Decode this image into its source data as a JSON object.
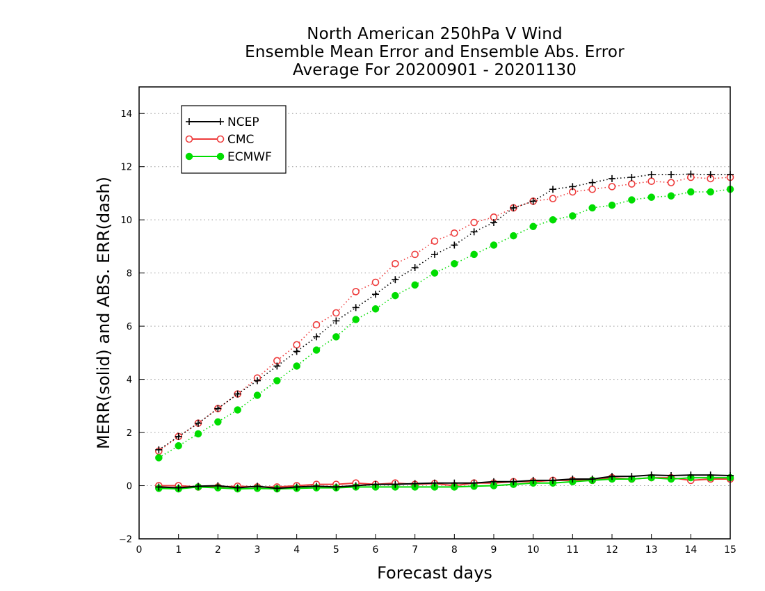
{
  "chart_data": {
    "type": "line",
    "title": [
      "North American 250hPa V Wind",
      "Ensemble Mean Error and Ensemble Abs. Error",
      "Average For 20200901 - 20201130"
    ],
    "xlabel": "Forecast days",
    "ylabel": "MERR(solid) and ABS. ERR(dash)",
    "xlim": [
      0,
      15
    ],
    "ylim": [
      -2,
      15
    ],
    "xticks": [
      0,
      1,
      2,
      3,
      4,
      5,
      6,
      7,
      8,
      9,
      10,
      11,
      12,
      13,
      14,
      15
    ],
    "yticks": [
      -2,
      0,
      2,
      4,
      6,
      8,
      10,
      12,
      14
    ],
    "grid": "horizontal dotted",
    "legend_position": "top-left",
    "x": [
      0.5,
      1,
      1.5,
      2,
      2.5,
      3,
      3.5,
      4,
      4.5,
      5,
      5.5,
      6,
      6.5,
      7,
      7.5,
      8,
      8.5,
      9,
      9.5,
      10,
      10.5,
      11,
      11.5,
      12,
      12.5,
      13,
      13.5,
      14,
      14.5,
      15
    ],
    "series": [
      {
        "name": "NCEP",
        "color": "#000000",
        "marker": "plus",
        "abs_error": [
          1.35,
          1.85,
          2.35,
          2.9,
          3.45,
          3.95,
          4.5,
          5.05,
          5.6,
          6.2,
          6.7,
          7.2,
          7.75,
          8.2,
          8.7,
          9.05,
          9.55,
          9.9,
          10.45,
          10.7,
          11.15,
          11.25,
          11.4,
          11.55,
          11.6,
          11.7,
          11.7,
          11.72,
          11.7,
          11.7
        ],
        "mean_error": [
          -0.05,
          -0.08,
          -0.02,
          0.0,
          -0.08,
          -0.02,
          -0.1,
          -0.05,
          -0.02,
          -0.05,
          0.0,
          0.05,
          0.05,
          0.08,
          0.1,
          0.1,
          0.1,
          0.15,
          0.15,
          0.2,
          0.2,
          0.25,
          0.25,
          0.35,
          0.35,
          0.4,
          0.38,
          0.4,
          0.4,
          0.38
        ]
      },
      {
        "name": "CMC",
        "color": "#ee3b3b",
        "marker": "open-circle",
        "abs_error": [
          1.3,
          1.85,
          2.35,
          2.9,
          3.45,
          4.05,
          4.7,
          5.3,
          6.05,
          6.5,
          7.3,
          7.65,
          8.35,
          8.7,
          9.2,
          9.5,
          9.9,
          10.1,
          10.45,
          10.7,
          10.8,
          11.05,
          11.15,
          11.25,
          11.35,
          11.45,
          11.4,
          11.6,
          11.55,
          11.6
        ],
        "mean_error": [
          0.0,
          0.0,
          -0.05,
          -0.05,
          -0.02,
          -0.05,
          -0.05,
          0.0,
          0.05,
          0.05,
          0.1,
          0.05,
          0.1,
          0.05,
          0.08,
          0.0,
          0.1,
          0.1,
          0.15,
          0.15,
          0.2,
          0.2,
          0.2,
          0.3,
          0.25,
          0.3,
          0.3,
          0.2,
          0.25,
          0.25
        ]
      },
      {
        "name": "ECMWF",
        "color": "#00dd00",
        "marker": "filled-circle",
        "abs_error": [
          1.05,
          1.5,
          1.95,
          2.4,
          2.85,
          3.4,
          3.95,
          4.5,
          5.1,
          5.6,
          6.25,
          6.65,
          7.15,
          7.55,
          8.0,
          8.35,
          8.7,
          9.05,
          9.4,
          9.75,
          10.0,
          10.15,
          10.45,
          10.55,
          10.75,
          10.85,
          10.9,
          11.05,
          11.05,
          11.15
        ],
        "mean_error": [
          -0.1,
          -0.12,
          -0.05,
          -0.08,
          -0.12,
          -0.1,
          -0.12,
          -0.1,
          -0.08,
          -0.08,
          -0.05,
          -0.05,
          -0.05,
          -0.05,
          -0.05,
          -0.05,
          -0.02,
          0.0,
          0.05,
          0.1,
          0.1,
          0.15,
          0.2,
          0.25,
          0.25,
          0.3,
          0.25,
          0.3,
          0.3,
          0.3
        ]
      }
    ]
  }
}
